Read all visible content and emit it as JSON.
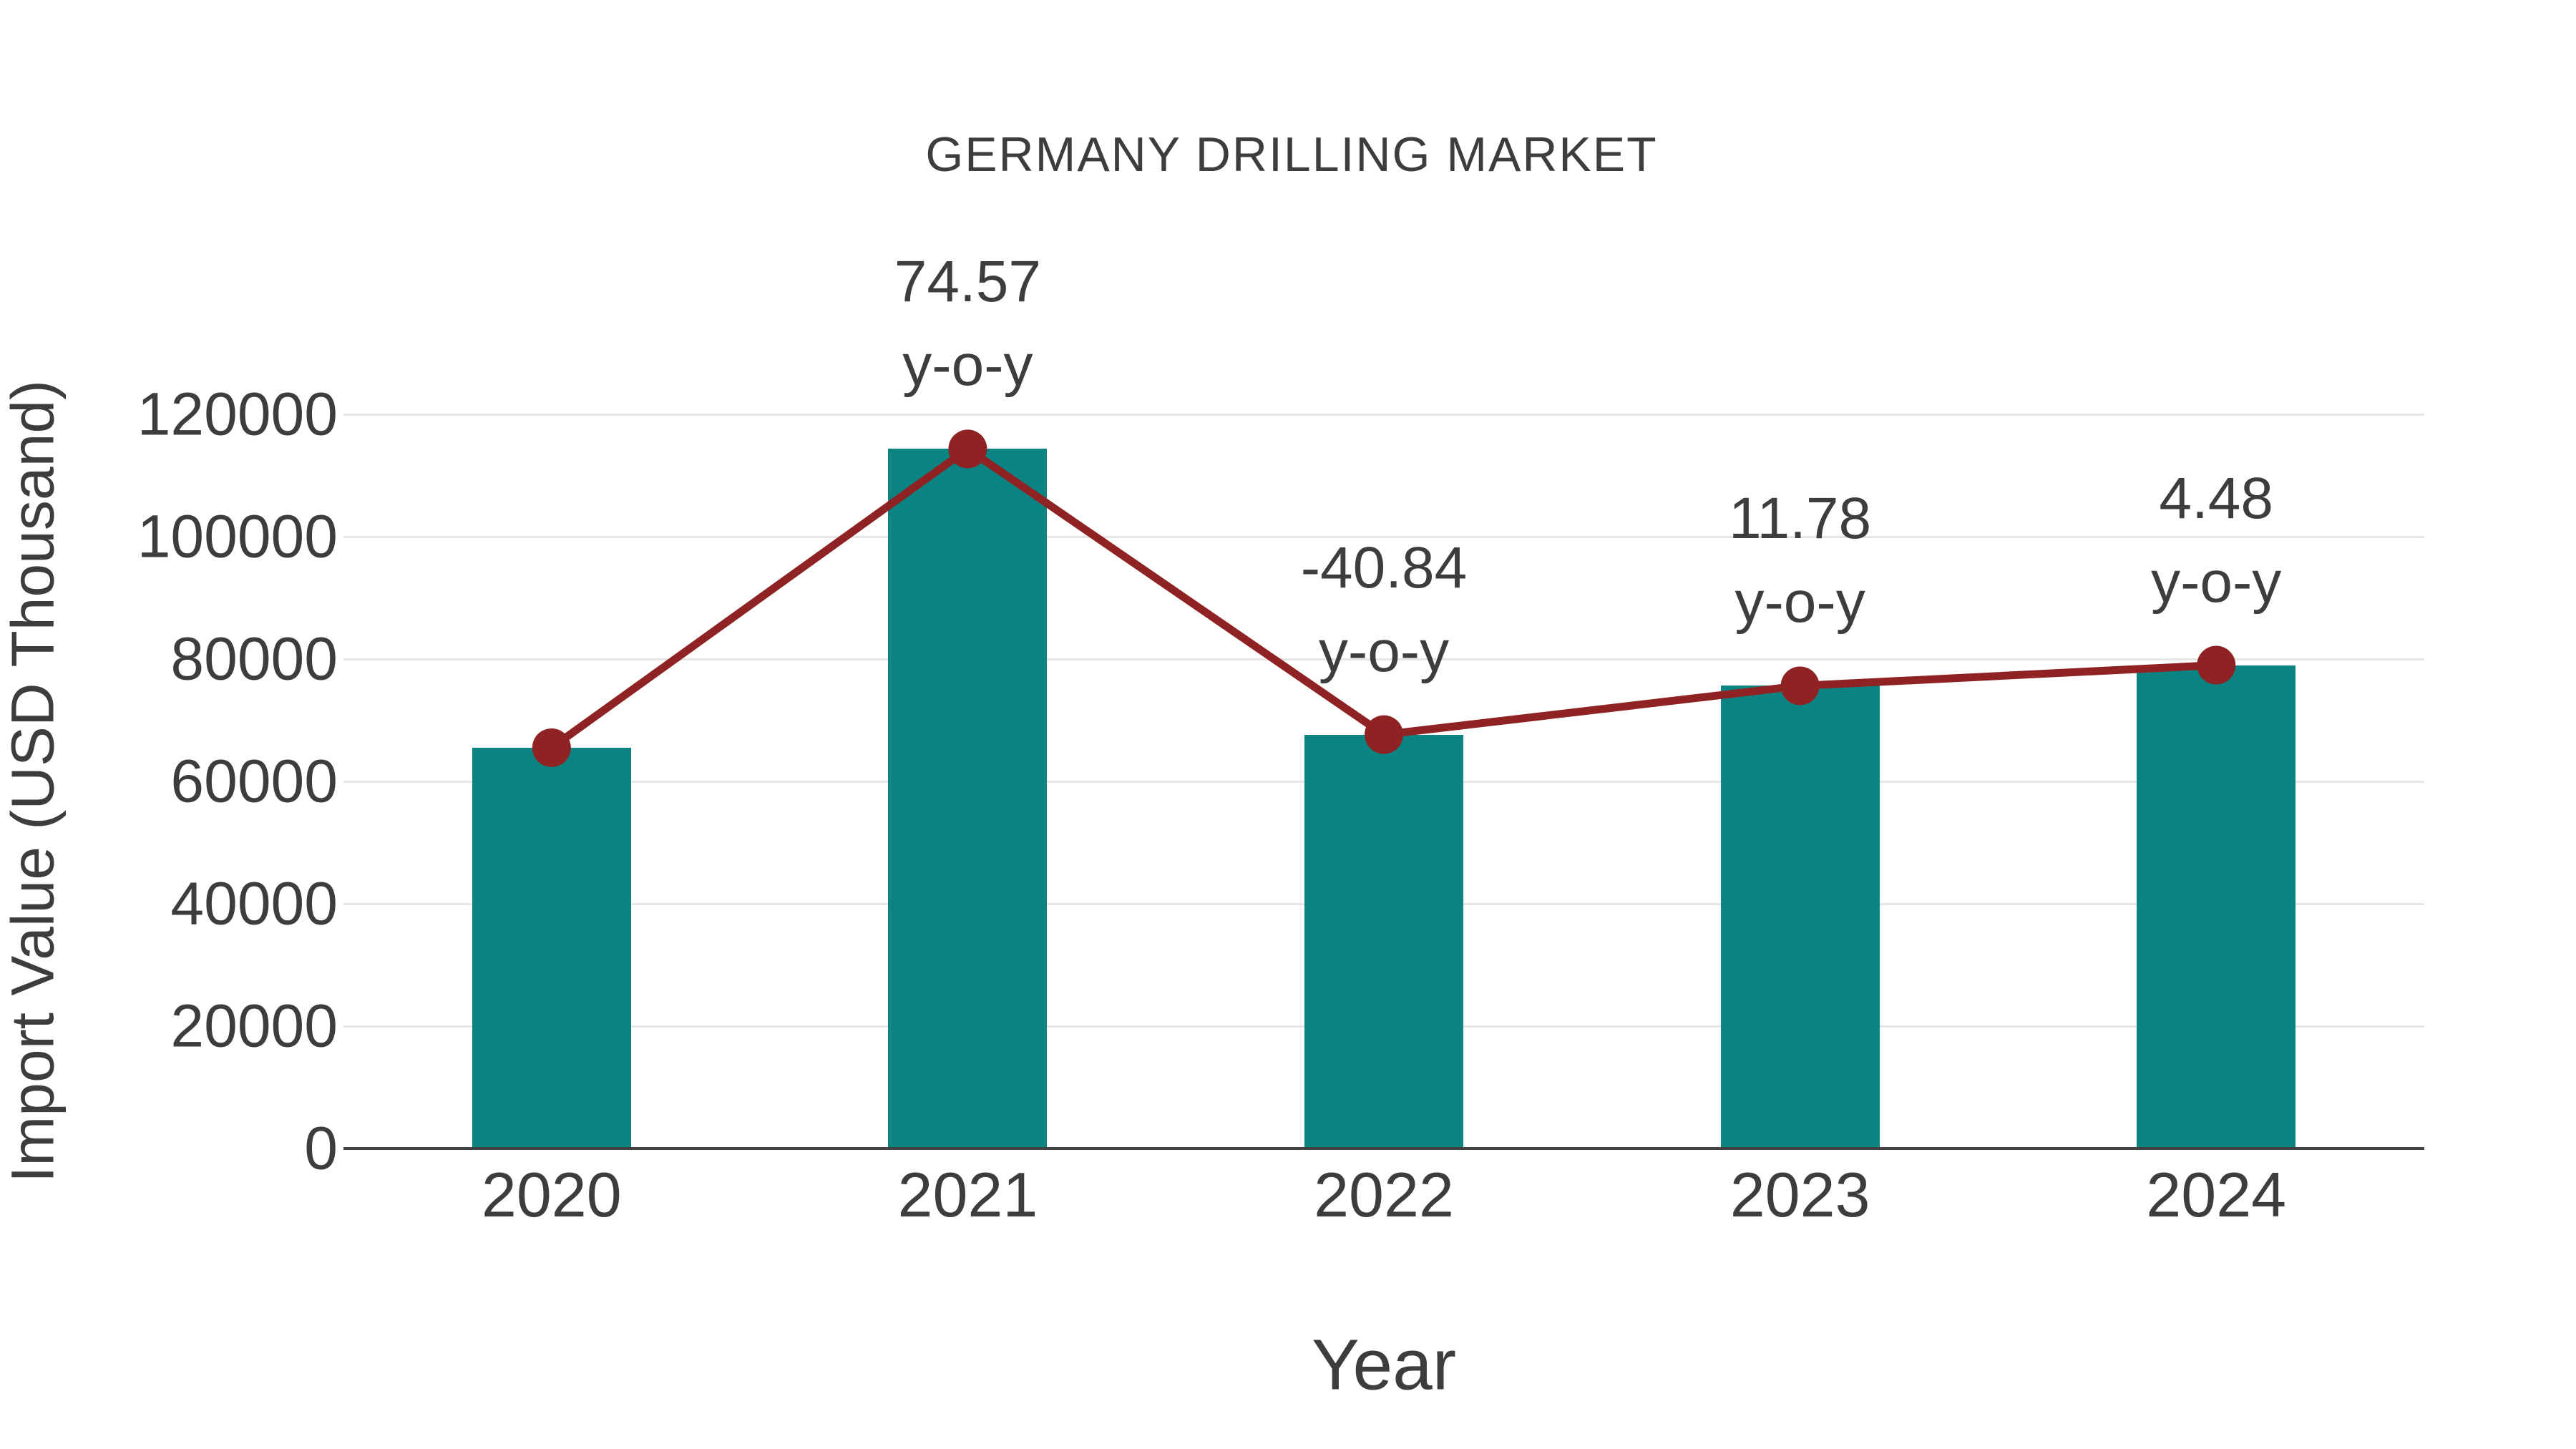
{
  "title": "GERMANY DRILLING MARKET",
  "xlabel": "Year",
  "ylabel": "Import Value (USD Thousand)",
  "colors": {
    "bar": "#0a8483",
    "line": "#8f2323",
    "marker": "#8f2323",
    "text": "#3d3d3d",
    "grid": "#e6e6e6",
    "axis": "#424242",
    "background": "#ffffff"
  },
  "chart_data": {
    "type": "bar",
    "title": "GERMANY DRILLING MARKET",
    "xlabel": "Year",
    "ylabel": "Import Value (USD Thousand)",
    "categories": [
      "2020",
      "2021",
      "2022",
      "2023",
      "2024"
    ],
    "series": [
      {
        "name": "Import Value",
        "type": "bar",
        "values": [
          65500,
          114340,
          67645,
          75615,
          79000
        ]
      },
      {
        "name": "y-o-y line",
        "type": "line",
        "values": [
          65500,
          114340,
          67645,
          75615,
          79000
        ]
      }
    ],
    "yoy_percent": [
      null,
      74.57,
      -40.84,
      11.78,
      4.48
    ],
    "annotations": [
      {
        "category": "2021",
        "line1": "74.57",
        "line2": "y-o-y"
      },
      {
        "category": "2022",
        "line1": "-40.84",
        "line2": "y-o-y"
      },
      {
        "category": "2023",
        "line1": "11.78",
        "line2": "y-o-y"
      },
      {
        "category": "2024",
        "line1": "4.48",
        "line2": "y-o-y"
      }
    ],
    "yticks": [
      0,
      20000,
      40000,
      60000,
      80000,
      100000,
      120000
    ],
    "ylim": [
      0,
      120000
    ],
    "grid": true,
    "legend_position": "none"
  }
}
